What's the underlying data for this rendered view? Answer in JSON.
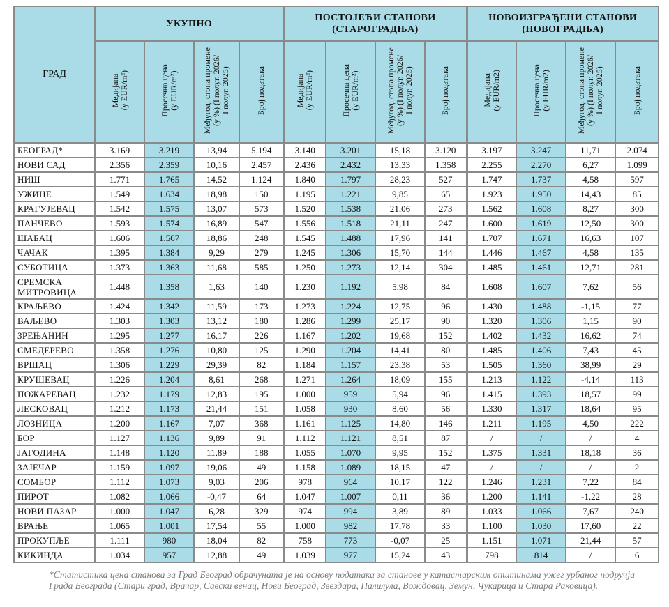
{
  "header": {
    "city_col": "ГРАД",
    "groups": [
      "УКУПНО",
      "ПОСТОЈЕЋИ СТАНОВИ\n(СТАРОГРАДЊА)",
      "НОВОИЗГРАЂЕНИ СТАНОВИ\n(НОВОГРАДЊА)"
    ],
    "subcols": [
      [
        "Медијана\n(у EUR/m²)",
        "Просечна цена\n(у EUR/m²)",
        "Међугод. стопа промене\n(у %) (I полуг. 2026/\nI полуг. 2025)",
        "Број података"
      ],
      [
        "Медијана\n(у EUR/m²)",
        "Просечна цена\n(у EUR/m²)",
        "Међугод. стопа промене\n(у %) (I полуг. 2026/\nI полуг. 2025)",
        "Број података"
      ],
      [
        "Медијана\n(у EUR/m2)",
        "Просечна цена\n(у EUR/m2)",
        "Међугод. стопа промене\n(у %) (I полуг. 2026/\nI полуг. 2025)",
        "Број података"
      ]
    ]
  },
  "rows": [
    {
      "city": "БЕОГРАД*",
      "v": [
        "3.169",
        "3.219",
        "13,94",
        "5.194",
        "3.140",
        "3.201",
        "15,18",
        "3.120",
        "3.197",
        "3.247",
        "11,71",
        "2.074"
      ]
    },
    {
      "city": "НОВИ САД",
      "v": [
        "2.356",
        "2.359",
        "10,16",
        "2.457",
        "2.436",
        "2.432",
        "13,33",
        "1.358",
        "2.255",
        "2.270",
        "6,27",
        "1.099"
      ]
    },
    {
      "city": "НИШ",
      "v": [
        "1.771",
        "1.765",
        "14,52",
        "1.124",
        "1.840",
        "1.797",
        "28,23",
        "527",
        "1.747",
        "1.737",
        "4,58",
        "597"
      ]
    },
    {
      "city": "УЖИЦЕ",
      "v": [
        "1.549",
        "1.634",
        "18,98",
        "150",
        "1.195",
        "1.221",
        "9,85",
        "65",
        "1.923",
        "1.950",
        "14,43",
        "85"
      ]
    },
    {
      "city": "КРАГУЈЕВАЦ",
      "v": [
        "1.542",
        "1.575",
        "13,07",
        "573",
        "1.520",
        "1.538",
        "21,06",
        "273",
        "1.562",
        "1.608",
        "8,27",
        "300"
      ]
    },
    {
      "city": "ПАНЧЕВО",
      "v": [
        "1.593",
        "1.574",
        "16,89",
        "547",
        "1.556",
        "1.518",
        "21,11",
        "247",
        "1.600",
        "1.619",
        "12,50",
        "300"
      ]
    },
    {
      "city": "ШАБАЦ",
      "v": [
        "1.606",
        "1.567",
        "18,86",
        "248",
        "1.545",
        "1.488",
        "17,96",
        "141",
        "1.707",
        "1.671",
        "16,63",
        "107"
      ]
    },
    {
      "city": "ЧАЧАК",
      "v": [
        "1.395",
        "1.384",
        "9,29",
        "279",
        "1.245",
        "1.306",
        "15,70",
        "144",
        "1.446",
        "1.467",
        "4,58",
        "135"
      ]
    },
    {
      "city": "СУБОТИЦА",
      "v": [
        "1.373",
        "1.363",
        "11,68",
        "585",
        "1.250",
        "1.273",
        "12,14",
        "304",
        "1.485",
        "1.461",
        "12,71",
        "281"
      ]
    },
    {
      "city": "СРЕМСКА\nМИТРОВИЦА",
      "v": [
        "1.448",
        "1.358",
        "1,63",
        "140",
        "1.230",
        "1.192",
        "5,98",
        "84",
        "1.608",
        "1.607",
        "7,62",
        "56"
      ]
    },
    {
      "city": "КРАЉЕВО",
      "v": [
        "1.424",
        "1.342",
        "11,59",
        "173",
        "1.273",
        "1.224",
        "12,75",
        "96",
        "1.430",
        "1.488",
        "-1,15",
        "77"
      ]
    },
    {
      "city": "ВАЉЕВО",
      "v": [
        "1.303",
        "1.303",
        "13,12",
        "180",
        "1.286",
        "1.299",
        "25,17",
        "90",
        "1.320",
        "1.306",
        "1,15",
        "90"
      ]
    },
    {
      "city": "ЗРЕЊАНИН",
      "v": [
        "1.295",
        "1.277",
        "16,17",
        "226",
        "1.167",
        "1.202",
        "19,68",
        "152",
        "1.402",
        "1.432",
        "16,62",
        "74"
      ]
    },
    {
      "city": "СМЕДЕРЕВО",
      "v": [
        "1.358",
        "1.276",
        "10,80",
        "125",
        "1.290",
        "1.204",
        "14,41",
        "80",
        "1.485",
        "1.406",
        "7,43",
        "45"
      ]
    },
    {
      "city": "ВРШАЦ",
      "v": [
        "1.306",
        "1.229",
        "29,39",
        "82",
        "1.184",
        "1.157",
        "23,38",
        "53",
        "1.505",
        "1.360",
        "38,99",
        "29"
      ]
    },
    {
      "city": "КРУШЕВАЦ",
      "v": [
        "1.226",
        "1.204",
        "8,61",
        "268",
        "1.271",
        "1.264",
        "18,09",
        "155",
        "1.213",
        "1.122",
        "-4,14",
        "113"
      ]
    },
    {
      "city": "ПОЖАРЕВАЦ",
      "v": [
        "1.232",
        "1.179",
        "12,83",
        "195",
        "1.000",
        "959",
        "5,94",
        "96",
        "1.415",
        "1.393",
        "18,57",
        "99"
      ]
    },
    {
      "city": "ЛЕСКОВАЦ",
      "v": [
        "1.212",
        "1.173",
        "21,44",
        "151",
        "1.058",
        "930",
        "8,60",
        "56",
        "1.330",
        "1.317",
        "18,64",
        "95"
      ]
    },
    {
      "city": "ЛОЗНИЦА",
      "v": [
        "1.200",
        "1.167",
        "7,07",
        "368",
        "1.161",
        "1.125",
        "14,80",
        "146",
        "1.211",
        "1.195",
        "4,50",
        "222"
      ]
    },
    {
      "city": "БОР",
      "v": [
        "1.127",
        "1.136",
        "9,89",
        "91",
        "1.112",
        "1.121",
        "8,51",
        "87",
        "/",
        "/",
        "/",
        "4"
      ]
    },
    {
      "city": "ЈАГОДИНА",
      "v": [
        "1.148",
        "1.120",
        "11,89",
        "188",
        "1.055",
        "1.070",
        "9,95",
        "152",
        "1.375",
        "1.331",
        "18,18",
        "36"
      ]
    },
    {
      "city": "ЗАЈЕЧАР",
      "v": [
        "1.159",
        "1.097",
        "19,06",
        "49",
        "1.158",
        "1.089",
        "18,15",
        "47",
        "/",
        "/",
        "/",
        "2"
      ]
    },
    {
      "city": "СОМБОР",
      "v": [
        "1.112",
        "1.073",
        "9,03",
        "206",
        "978",
        "964",
        "10,17",
        "122",
        "1.246",
        "1.231",
        "7,22",
        "84"
      ]
    },
    {
      "city": "ПИРОТ",
      "v": [
        "1.082",
        "1.066",
        "-0,47",
        "64",
        "1.047",
        "1.007",
        "0,11",
        "36",
        "1.200",
        "1.141",
        "-1,22",
        "28"
      ]
    },
    {
      "city": "НОВИ ПАЗАР",
      "v": [
        "1.000",
        "1.047",
        "6,28",
        "329",
        "974",
        "994",
        "3,89",
        "89",
        "1.033",
        "1.066",
        "7,67",
        "240"
      ]
    },
    {
      "city": "ВРАЊЕ",
      "v": [
        "1.065",
        "1.001",
        "17,54",
        "55",
        "1.000",
        "982",
        "17,78",
        "33",
        "1.100",
        "1.030",
        "17,60",
        "22"
      ]
    },
    {
      "city": "ПРОКУПЉЕ",
      "v": [
        "1.111",
        "980",
        "18,04",
        "82",
        "758",
        "773",
        "-0,07",
        "25",
        "1.151",
        "1.071",
        "21,44",
        "57"
      ]
    },
    {
      "city": "КИКИНДА",
      "v": [
        "1.034",
        "957",
        "12,88",
        "49",
        "1.039",
        "977",
        "15,24",
        "43",
        "798",
        "814",
        "/",
        "6"
      ]
    }
  ],
  "footnote": "*Статистика цена станова за Град Београд обрачуната је на основу података за станове у катастарским општинама ужег урбаног подручја Града Београда (Стари град, Врачар, Савски венац, Нови Београд, Звездара, Палилула, Вождовац, Земун, Чукарица и Стара Раковица)."
}
